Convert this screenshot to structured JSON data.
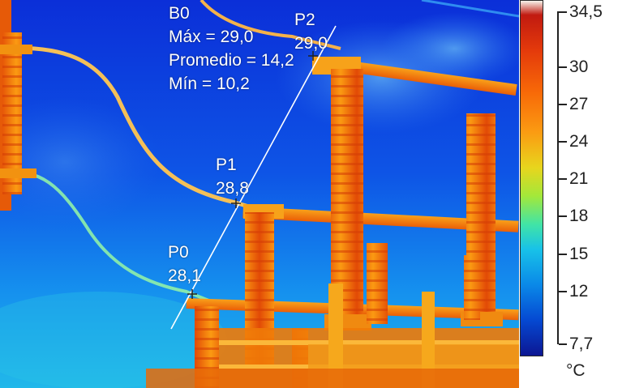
{
  "measurement": {
    "box_label": "B0",
    "max_text": "Máx = 29,0",
    "avg_text": "Promedio = 14,2",
    "min_text": "Mín = 10,2",
    "points": [
      {
        "label": "P0",
        "value": "28,1"
      },
      {
        "label": "P1",
        "value": "28,8"
      },
      {
        "label": "P2",
        "value": "29,0"
      }
    ]
  },
  "scale": {
    "max": "34,5",
    "min": "7,7",
    "ticks": [
      "30",
      "27",
      "24",
      "21",
      "18",
      "15",
      "12"
    ],
    "unit": "°C"
  },
  "colors": {
    "sky_top": "#0c34d8",
    "sky_bottom": "#1aa6ee",
    "hot": "#f07a08",
    "cable": "#f5c65a"
  }
}
